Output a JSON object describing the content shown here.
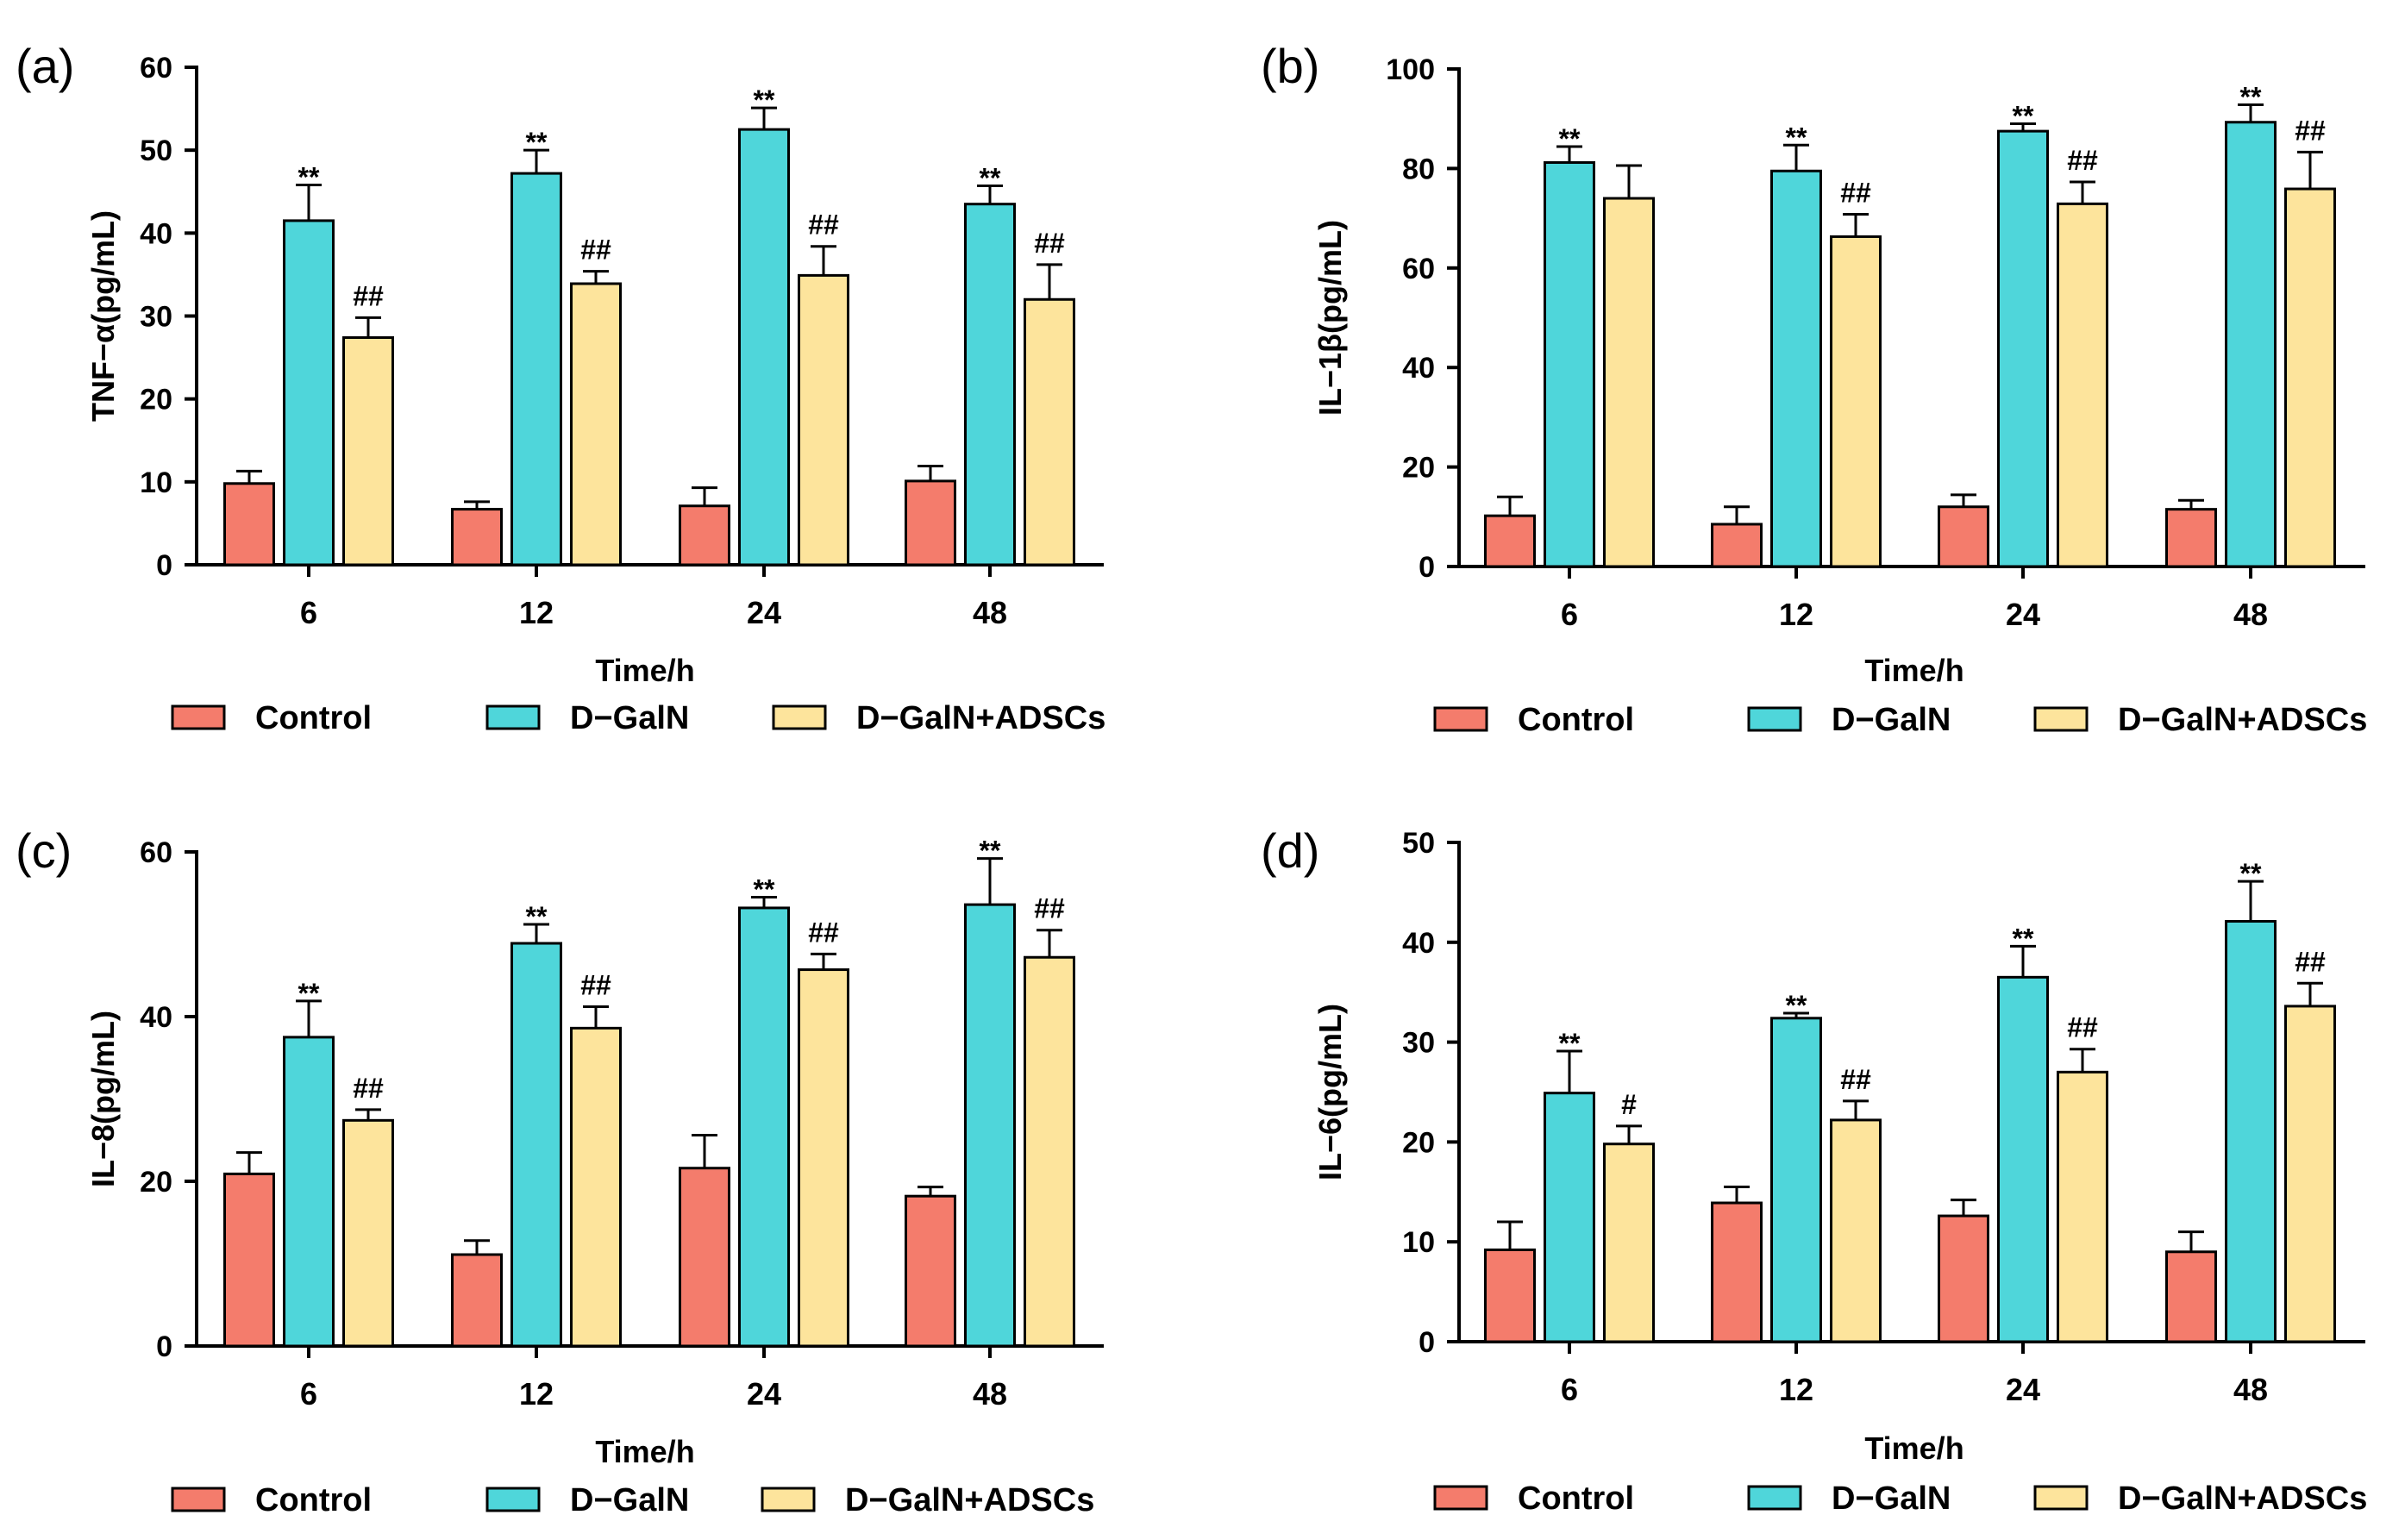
{
  "colors": {
    "Control": "#f47c6c",
    "D-GalN": "#4fd6da",
    "D-GalN+ADSCs": "#fde49c",
    "stroke": "#000000"
  },
  "chart_data": [
    {
      "panel": "(a)",
      "type": "bar",
      "ylabel": "TNF−α(pg/mL)",
      "xlabel": "Time/h",
      "categories": [
        "6",
        "12",
        "24",
        "48"
      ],
      "ylim": [
        0,
        60
      ],
      "yticks": [
        0,
        10,
        20,
        30,
        40,
        50,
        60
      ],
      "legend": [
        "Control",
        "D−GalN",
        "D−GalN+ADSCs"
      ],
      "series": [
        {
          "name": "Control",
          "values": [
            9.8,
            6.7,
            7.1,
            10.1
          ],
          "errors": [
            1.5,
            0.9,
            2.2,
            1.8
          ],
          "labels": [
            "",
            "",
            "",
            ""
          ]
        },
        {
          "name": "D-GalN",
          "values": [
            41.5,
            47.2,
            52.5,
            43.5
          ],
          "errors": [
            4.3,
            2.8,
            2.6,
            2.2
          ],
          "labels": [
            "**",
            "**",
            "**",
            "**"
          ]
        },
        {
          "name": "D-GalN+ADSCs",
          "values": [
            27.4,
            33.9,
            34.9,
            32.0
          ],
          "errors": [
            2.4,
            1.5,
            3.5,
            4.2
          ],
          "labels": [
            "##",
            "##",
            "##",
            "##"
          ]
        }
      ]
    },
    {
      "panel": "(b)",
      "type": "bar",
      "ylabel": "IL−1β(pg/mL)",
      "xlabel": "Time/h",
      "categories": [
        "6",
        "12",
        "24",
        "48"
      ],
      "ylim": [
        0,
        100
      ],
      "yticks": [
        0,
        20,
        40,
        60,
        80,
        100
      ],
      "legend": [
        "Control",
        "D−GalN",
        "D−GalN+ADSCs"
      ],
      "series": [
        {
          "name": "Control",
          "values": [
            10.2,
            8.5,
            12.0,
            11.5
          ],
          "errors": [
            3.8,
            3.5,
            2.4,
            1.8
          ],
          "labels": [
            "",
            "",
            "",
            ""
          ]
        },
        {
          "name": "D-GalN",
          "values": [
            81.2,
            79.5,
            87.5,
            89.3
          ],
          "errors": [
            3.2,
            5.2,
            1.5,
            3.5
          ],
          "labels": [
            "**",
            "**",
            "**",
            "**"
          ]
        },
        {
          "name": "D-GalN+ADSCs",
          "values": [
            74.0,
            66.3,
            72.9,
            75.9
          ],
          "errors": [
            6.6,
            4.5,
            4.4,
            7.4
          ],
          "labels": [
            "",
            "##",
            "##",
            "##"
          ]
        }
      ]
    },
    {
      "panel": "(c)",
      "type": "bar",
      "ylabel": "IL−8(pg/mL)",
      "xlabel": "Time/h",
      "categories": [
        "6",
        "12",
        "24",
        "48"
      ],
      "ylim": [
        0,
        60
      ],
      "yticks": [
        0,
        20,
        40,
        60
      ],
      "legend": [
        "Control",
        "D−GalN",
        "D−GalN+ADSCs"
      ],
      "series": [
        {
          "name": "Control",
          "values": [
            20.9,
            11.1,
            21.6,
            18.2
          ],
          "errors": [
            2.6,
            1.7,
            4.0,
            1.1
          ],
          "labels": [
            "",
            "",
            "",
            ""
          ]
        },
        {
          "name": "D-GalN",
          "values": [
            37.5,
            48.9,
            53.2,
            53.6
          ],
          "errors": [
            4.4,
            2.3,
            1.3,
            5.6
          ],
          "labels": [
            "**",
            "**",
            "**",
            "**"
          ]
        },
        {
          "name": "D-GalN+ADSCs",
          "values": [
            27.4,
            38.6,
            45.7,
            47.2
          ],
          "errors": [
            1.3,
            2.6,
            1.9,
            3.3
          ],
          "labels": [
            "##",
            "##",
            "##",
            "##"
          ]
        }
      ]
    },
    {
      "panel": "(d)",
      "type": "bar",
      "ylabel": "IL−6(pg/mL)",
      "xlabel": "Time/h",
      "categories": [
        "6",
        "12",
        "24",
        "48"
      ],
      "ylim": [
        0,
        50
      ],
      "yticks": [
        0,
        10,
        20,
        30,
        40,
        50
      ],
      "legend": [
        "Control",
        "D−GalN",
        "D−GalN+ADSCs"
      ],
      "series": [
        {
          "name": "Control",
          "values": [
            9.2,
            13.9,
            12.6,
            9.0
          ],
          "errors": [
            2.8,
            1.6,
            1.6,
            2.0
          ],
          "labels": [
            "",
            "",
            "",
            ""
          ]
        },
        {
          "name": "D-GalN",
          "values": [
            24.9,
            32.4,
            36.5,
            42.1
          ],
          "errors": [
            4.2,
            0.5,
            3.1,
            4.0
          ],
          "labels": [
            "**",
            "**",
            "**",
            "**"
          ]
        },
        {
          "name": "D-GalN+ADSCs",
          "values": [
            19.8,
            22.2,
            27.0,
            33.6
          ],
          "errors": [
            1.8,
            1.9,
            2.3,
            2.3
          ],
          "labels": [
            "#",
            "##",
            "##",
            "##"
          ]
        }
      ]
    }
  ]
}
